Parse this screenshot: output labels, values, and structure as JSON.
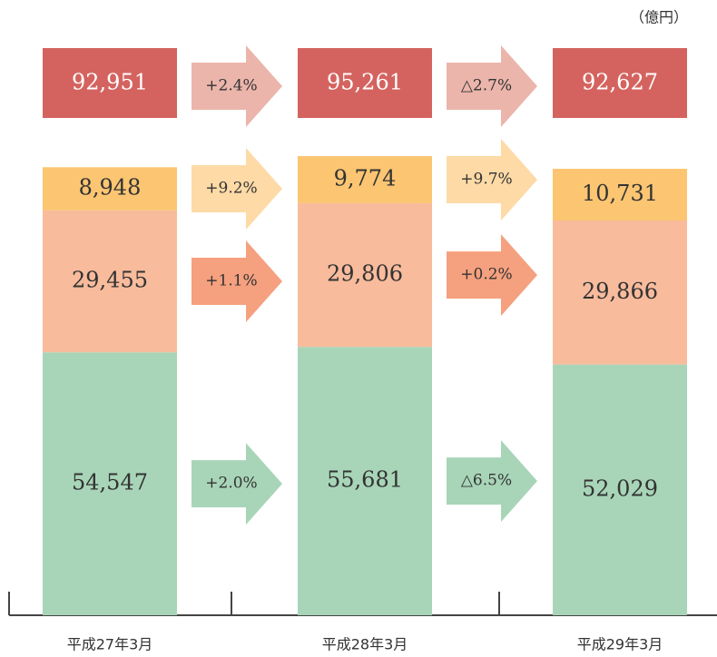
{
  "chart_data": {
    "type": "bar",
    "stacked": true,
    "unit": "（億円）",
    "categories": [
      "平成27年3月",
      "平成28年3月",
      "平成29年3月"
    ],
    "totals": {
      "values": [
        92951,
        95261,
        92627
      ],
      "value_labels": [
        "92,951",
        "95,261",
        "92,627"
      ],
      "color": "#d4635f",
      "arrow_color": "#ebb5ab",
      "changes": [
        "+2.4%",
        "△2.7%"
      ]
    },
    "series": [
      {
        "color": "#a8d5b8",
        "arrow_color": "#a8d5b8",
        "values": [
          54547,
          55681,
          52029
        ],
        "value_labels": [
          "54,547",
          "55,681",
          "52,029"
        ],
        "changes": [
          "+2.0%",
          "△6.5%"
        ]
      },
      {
        "color": "#f8bb9c",
        "arrow_color": "#f5a07e",
        "values": [
          29455,
          29806,
          29866
        ],
        "value_labels": [
          "29,455",
          "29,806",
          "29,866"
        ],
        "changes": [
          "+1.1%",
          "+0.2%"
        ]
      },
      {
        "color": "#fbc572",
        "arrow_color": "#fddaa6",
        "values": [
          8948,
          9774,
          10731
        ],
        "value_labels": [
          "8,948",
          "9,774",
          "10,731"
        ],
        "changes": [
          "+9.2%",
          "+9.7%"
        ]
      }
    ]
  }
}
